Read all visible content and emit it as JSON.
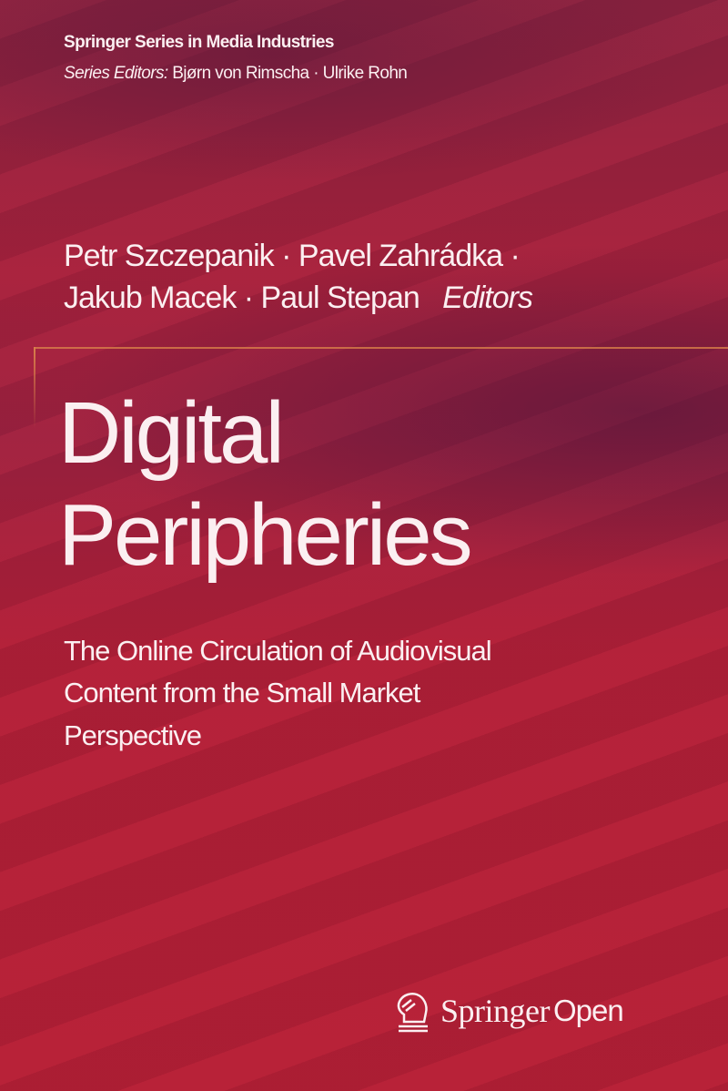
{
  "series": {
    "title": "Springer Series in Media Industries",
    "editors_label": "Series Editors:",
    "editors": "Bjørn von Rimscha · Ulrike Rohn"
  },
  "authors": {
    "line1": "Petr Szczepanik · Pavel Zahrádka ·",
    "line2": "Jakub Macek · Paul Stepan",
    "role": "Editors"
  },
  "title": {
    "line1": "Digital",
    "line2": "Peripheries"
  },
  "subtitle": {
    "line1": "The Online Circulation of Audiovisual",
    "line2": "Content from the Small Market",
    "line3": "Perspective"
  },
  "publisher": {
    "name": "Springer",
    "imprint": "Open",
    "icon": "chess-knight-icon"
  },
  "colors": {
    "background": "#b01f38",
    "accent_line": "#d8804a",
    "text": "#fbeff1"
  }
}
